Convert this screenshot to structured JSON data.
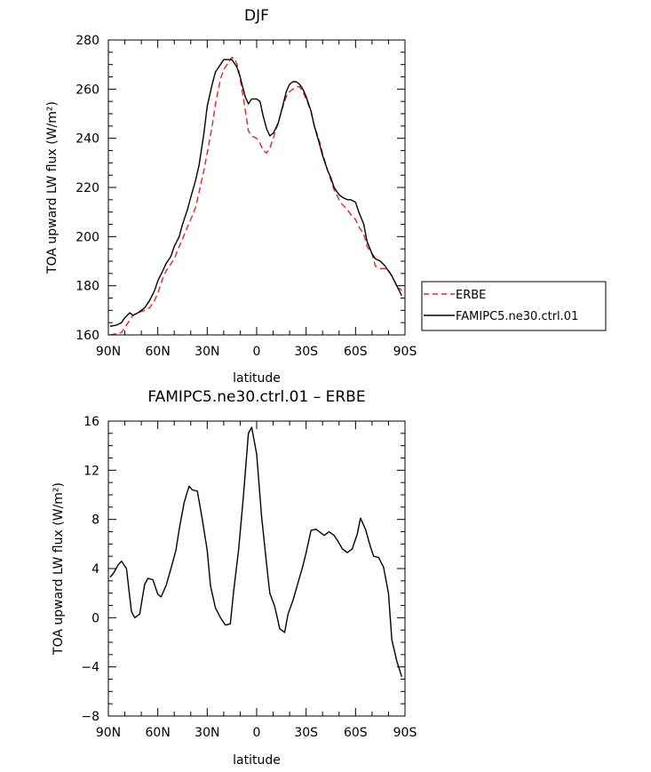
{
  "chart_data": [
    {
      "type": "line",
      "title": "DJF",
      "xlabel": "latitude",
      "ylabel": "TOA upward LW flux (W/m²)",
      "xlim": [
        90,
        -90
      ],
      "ylim": [
        160,
        280
      ],
      "x_ticks": [
        90,
        60,
        30,
        0,
        -30,
        -60,
        -90
      ],
      "x_tick_labels": [
        "90N",
        "60N",
        "30N",
        "0",
        "30S",
        "60S",
        "90S"
      ],
      "y_ticks": [
        160,
        180,
        200,
        220,
        240,
        260,
        280
      ],
      "y_tick_labels": [
        "160",
        "180",
        "200",
        "220",
        "240",
        "260",
        "280"
      ],
      "grid": false,
      "legend_position": "right",
      "series": [
        {
          "name": "ERBE",
          "color": "#e8232a",
          "dash": "dashed",
          "x": [
            89,
            85,
            82,
            80,
            77,
            75,
            72,
            68,
            65,
            62,
            60,
            57,
            55,
            52,
            50,
            47,
            45,
            42,
            40,
            37,
            35,
            32,
            30,
            27,
            25,
            22,
            20,
            17,
            15,
            13,
            11,
            8,
            5,
            3,
            0,
            -2,
            -4,
            -6,
            -8,
            -10,
            -13,
            -15,
            -18,
            -20,
            -22,
            -24,
            -26,
            -28,
            -30,
            -33,
            -35,
            -38,
            -40,
            -43,
            -45,
            -47,
            -50,
            -52,
            -55,
            -57,
            -60,
            -62,
            -65,
            -67,
            -70,
            -72,
            -75,
            -78,
            -80,
            -82,
            -85,
            -88
          ],
          "values": [
            160,
            160.5,
            161,
            163,
            166,
            168,
            169,
            170,
            171,
            174,
            177,
            183,
            186,
            189,
            191,
            196,
            199,
            204,
            207,
            212,
            218,
            227,
            234,
            245,
            254,
            264,
            268,
            271,
            273,
            272,
            268,
            256,
            243,
            241,
            240,
            238,
            235,
            234,
            236,
            240,
            246,
            251,
            257,
            259,
            260,
            261,
            261,
            259,
            256,
            251,
            245,
            239,
            234,
            227,
            223,
            219,
            215,
            213,
            211,
            209,
            207,
            204,
            201,
            196,
            193,
            188,
            187,
            187,
            186.5,
            184,
            180,
            178
          ]
        },
        {
          "name": "FAMIPC5.ne30.ctrl.01",
          "color": "#000000",
          "dash": "solid",
          "x": [
            89,
            85,
            82,
            80,
            77,
            75,
            72,
            68,
            65,
            62,
            60,
            57,
            55,
            52,
            50,
            47,
            45,
            42,
            40,
            37,
            35,
            32,
            30,
            27,
            25,
            22,
            20,
            17,
            15,
            12,
            10,
            7,
            5,
            3,
            0,
            -2,
            -4,
            -6,
            -8,
            -10,
            -13,
            -15,
            -18,
            -20,
            -22,
            -24,
            -26,
            -28,
            -30,
            -33,
            -35,
            -38,
            -40,
            -43,
            -45,
            -47,
            -50,
            -52,
            -55,
            -57,
            -60,
            -62,
            -65,
            -67,
            -70,
            -72,
            -75,
            -78,
            -80,
            -82,
            -85,
            -88
          ],
          "values": [
            163.5,
            164,
            165,
            167,
            169,
            168,
            169,
            171,
            174,
            178,
            182,
            186,
            189,
            192,
            196,
            200,
            205,
            211,
            216,
            223,
            229,
            242,
            253,
            262,
            267,
            270,
            272,
            272,
            272,
            269,
            265,
            257,
            254,
            256,
            256,
            255,
            249,
            244,
            241,
            242,
            246,
            251,
            259,
            262,
            263,
            263,
            262,
            260,
            257,
            251,
            245,
            238,
            233,
            227,
            224,
            220,
            217,
            216,
            215,
            215,
            214,
            210,
            205,
            198,
            193,
            191,
            190,
            188,
            186,
            184,
            180,
            176
          ]
        }
      ]
    },
    {
      "type": "line",
      "title": "FAMIPC5.ne30.ctrl.01 – ERBE",
      "xlabel": "latitude",
      "ylabel": "TOA upward LW flux (W/m²)",
      "xlim": [
        90,
        -90
      ],
      "ylim": [
        -8,
        16
      ],
      "x_ticks": [
        90,
        60,
        30,
        0,
        -30,
        -60,
        -90
      ],
      "x_tick_labels": [
        "90N",
        "60N",
        "30N",
        "0",
        "30S",
        "60S",
        "90S"
      ],
      "y_ticks": [
        -8,
        -4,
        0,
        4,
        8,
        12,
        16
      ],
      "y_tick_labels": [
        "−8",
        "−4",
        "0",
        "4",
        "8",
        "12",
        "16"
      ],
      "grid": false,
      "series": [
        {
          "color": "#000000",
          "dash": "solid",
          "x": [
            89,
            87,
            84,
            82,
            79,
            76,
            74,
            71,
            68,
            66,
            63,
            60,
            58,
            55,
            52,
            49,
            47,
            44,
            41,
            39,
            36,
            33,
            30,
            28,
            25,
            22,
            19,
            16,
            14,
            11,
            8,
            5,
            3,
            0,
            -3,
            -6,
            -8,
            -11,
            -14,
            -17,
            -19,
            -22,
            -25,
            -28,
            -30,
            -33,
            -36,
            -39,
            -41,
            -44,
            -47,
            -49,
            -52,
            -55,
            -58,
            -61,
            -63,
            -66,
            -69,
            -71,
            -74,
            -77,
            -80,
            -82,
            -85,
            -88
          ],
          "values": [
            3.3,
            3.6,
            4.3,
            4.6,
            4.0,
            0.5,
            0.0,
            0.3,
            2.7,
            3.2,
            3.1,
            1.9,
            1.7,
            2.6,
            4.0,
            5.5,
            7.2,
            9.4,
            10.7,
            10.4,
            10.3,
            8.0,
            5.5,
            2.6,
            0.8,
            0.0,
            -0.6,
            -0.5,
            2.1,
            5.5,
            10.0,
            15.0,
            15.5,
            13.3,
            8.2,
            4.4,
            2.0,
            0.9,
            -0.9,
            -1.2,
            0.3,
            1.4,
            2.8,
            4.2,
            5.3,
            7.1,
            7.2,
            6.9,
            6.7,
            7.0,
            6.7,
            6.3,
            5.6,
            5.3,
            5.6,
            6.8,
            8.1,
            7.2,
            5.8,
            5.0,
            4.9,
            4.1,
            2.0,
            -1.8,
            -3.5,
            -4.8
          ]
        }
      ]
    }
  ],
  "legend": {
    "items": [
      {
        "label": "ERBE",
        "color": "#e8232a",
        "dash": "dashed"
      },
      {
        "label": "FAMIPC5.ne30.ctrl.01",
        "color": "#000000",
        "dash": "solid"
      }
    ]
  }
}
